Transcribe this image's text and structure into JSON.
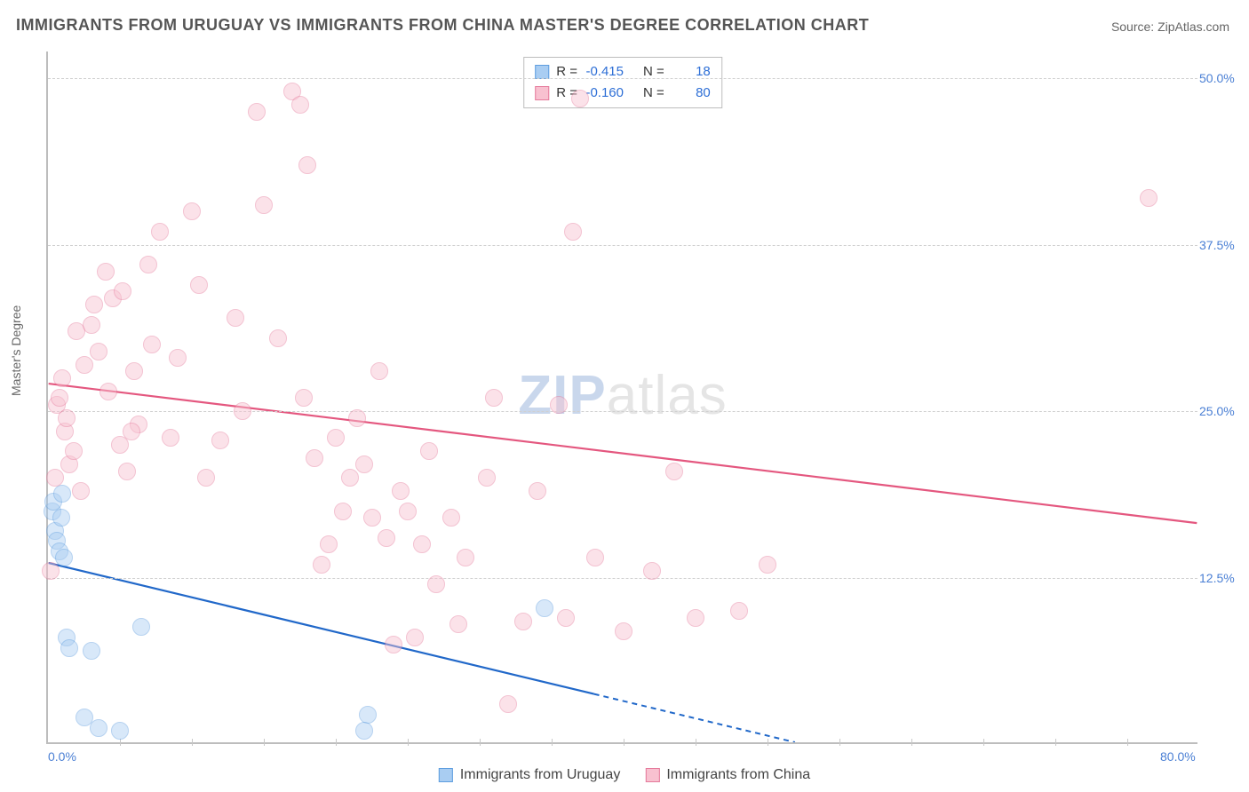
{
  "title": "IMMIGRANTS FROM URUGUAY VS IMMIGRANTS FROM CHINA MASTER'S DEGREE CORRELATION CHART",
  "source_label": "Source: ZipAtlas.com",
  "ylabel": "Master's Degree",
  "watermark_a": "ZIP",
  "watermark_b": "atlas",
  "chart": {
    "type": "scatter",
    "xlim": [
      0,
      80
    ],
    "ylim": [
      0,
      52
    ],
    "x_ticks": [
      0,
      80
    ],
    "x_tick_labels": [
      "0.0%",
      "80.0%"
    ],
    "y_ticks": [
      12.5,
      25.0,
      37.5,
      50.0
    ],
    "y_tick_labels": [
      "12.5%",
      "25.0%",
      "37.5%",
      "50.0%"
    ],
    "minor_x_step": 5,
    "background_color": "#ffffff",
    "grid_color": "#d0d0d0",
    "axis_color": "#bdbdbd",
    "label_color": "#4a7fd4",
    "marker_radius": 10,
    "marker_opacity": 0.45,
    "series": [
      {
        "name": "Immigrants from Uruguay",
        "legend_label": "Immigrants from Uruguay",
        "fill_color": "#a9cdf2",
        "stroke_color": "#5e9ddf",
        "trend_color": "#2168c9",
        "R": "-0.415",
        "N": "18",
        "trend": {
          "x1": 0,
          "y1": 13.5,
          "x2": 52,
          "y2": 0,
          "dash_after_x": 38
        },
        "points": [
          [
            0.3,
            17.5
          ],
          [
            0.4,
            18.2
          ],
          [
            0.5,
            16.0
          ],
          [
            0.6,
            15.3
          ],
          [
            0.8,
            14.5
          ],
          [
            0.9,
            17.0
          ],
          [
            1.0,
            18.8
          ],
          [
            1.1,
            14.0
          ],
          [
            1.3,
            8.0
          ],
          [
            1.5,
            7.2
          ],
          [
            2.5,
            2.0
          ],
          [
            3.0,
            7.0
          ],
          [
            3.5,
            1.2
          ],
          [
            5.0,
            1.0
          ],
          [
            6.5,
            8.8
          ],
          [
            22.2,
            2.2
          ],
          [
            22.0,
            1.0
          ],
          [
            34.5,
            10.2
          ]
        ]
      },
      {
        "name": "Immigrants from China",
        "legend_label": "Immigrants from China",
        "fill_color": "#f8c1d0",
        "stroke_color": "#e57a9b",
        "trend_color": "#e4577f",
        "R": "-0.160",
        "N": "80",
        "trend": {
          "x1": 0,
          "y1": 27.0,
          "x2": 80,
          "y2": 16.5,
          "dash_after_x": 80
        },
        "points": [
          [
            0.2,
            13.0
          ],
          [
            0.5,
            20.0
          ],
          [
            0.6,
            25.5
          ],
          [
            0.8,
            26.0
          ],
          [
            1.0,
            27.5
          ],
          [
            1.2,
            23.5
          ],
          [
            1.3,
            24.5
          ],
          [
            1.5,
            21.0
          ],
          [
            1.8,
            22.0
          ],
          [
            2.0,
            31.0
          ],
          [
            2.3,
            19.0
          ],
          [
            2.5,
            28.5
          ],
          [
            3.0,
            31.5
          ],
          [
            3.2,
            33.0
          ],
          [
            3.5,
            29.5
          ],
          [
            4.0,
            35.5
          ],
          [
            4.2,
            26.5
          ],
          [
            4.5,
            33.5
          ],
          [
            5.0,
            22.5
          ],
          [
            5.2,
            34.0
          ],
          [
            5.5,
            20.5
          ],
          [
            6.0,
            28.0
          ],
          [
            6.3,
            24.0
          ],
          [
            7.0,
            36.0
          ],
          [
            7.2,
            30.0
          ],
          [
            7.8,
            38.5
          ],
          [
            8.5,
            23.0
          ],
          [
            9.0,
            29.0
          ],
          [
            10.0,
            40.0
          ],
          [
            10.5,
            34.5
          ],
          [
            11.0,
            20.0
          ],
          [
            12.0,
            22.8
          ],
          [
            13.0,
            32.0
          ],
          [
            13.5,
            25.0
          ],
          [
            14.5,
            47.5
          ],
          [
            15.0,
            40.5
          ],
          [
            16.0,
            30.5
          ],
          [
            17.0,
            49.0
          ],
          [
            17.5,
            48.0
          ],
          [
            17.8,
            26.0
          ],
          [
            18.0,
            43.5
          ],
          [
            18.5,
            21.5
          ],
          [
            19.0,
            13.5
          ],
          [
            19.5,
            15.0
          ],
          [
            20.0,
            23.0
          ],
          [
            20.5,
            17.5
          ],
          [
            21.0,
            20.0
          ],
          [
            21.5,
            24.5
          ],
          [
            22.0,
            21.0
          ],
          [
            22.5,
            17.0
          ],
          [
            23.0,
            28.0
          ],
          [
            23.5,
            15.5
          ],
          [
            24.0,
            7.5
          ],
          [
            24.5,
            19.0
          ],
          [
            25.0,
            17.5
          ],
          [
            25.5,
            8.0
          ],
          [
            26.0,
            15.0
          ],
          [
            26.5,
            22.0
          ],
          [
            27.0,
            12.0
          ],
          [
            28.0,
            17.0
          ],
          [
            28.5,
            9.0
          ],
          [
            29.0,
            14.0
          ],
          [
            30.5,
            20.0
          ],
          [
            31.0,
            26.0
          ],
          [
            32.0,
            3.0
          ],
          [
            33.0,
            9.2
          ],
          [
            34.0,
            19.0
          ],
          [
            35.5,
            25.5
          ],
          [
            36.5,
            38.5
          ],
          [
            36.0,
            9.5
          ],
          [
            37.0,
            48.5
          ],
          [
            38.0,
            14.0
          ],
          [
            40.0,
            8.5
          ],
          [
            42.0,
            13.0
          ],
          [
            43.5,
            20.5
          ],
          [
            45.0,
            9.5
          ],
          [
            48.0,
            10.0
          ],
          [
            50.0,
            13.5
          ],
          [
            76.5,
            41.0
          ],
          [
            5.8,
            23.5
          ]
        ]
      }
    ]
  },
  "stats_legend": {
    "r_label": "R =",
    "n_label": "N ="
  }
}
